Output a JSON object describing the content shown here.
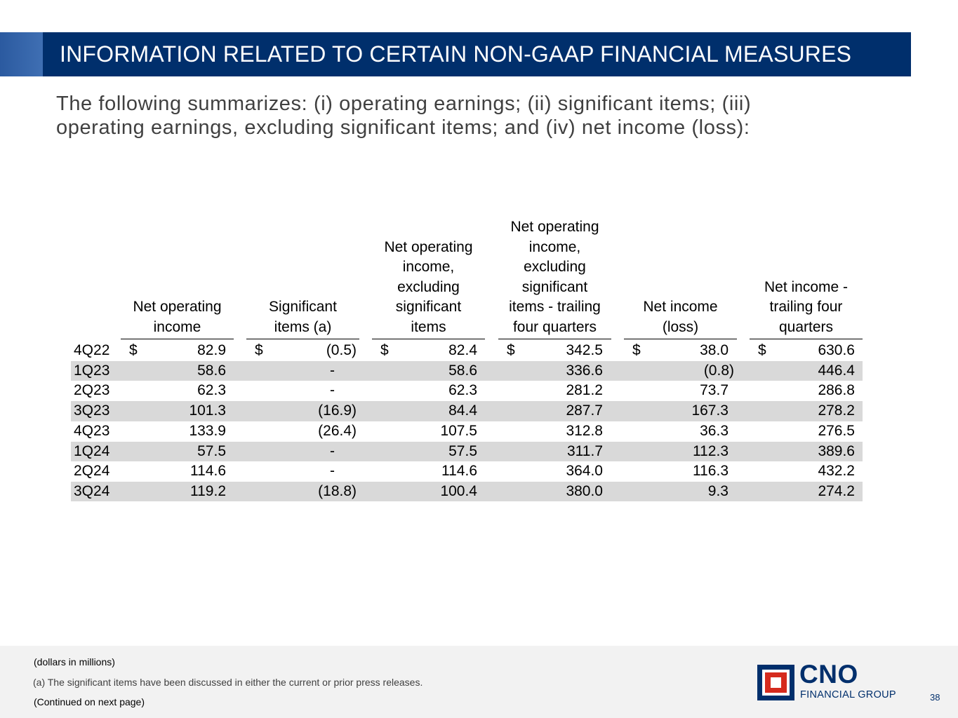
{
  "header": {
    "title": "INFORMATION RELATED TO CERTAIN NON-GAAP FINANCIAL MEASURES"
  },
  "intro": "The following summarizes: (i) operating earnings; (ii) significant items; (iii) operating earnings, excluding significant items; and (iv) net income (loss):",
  "table": {
    "columns": [
      [
        "Net operating",
        "income"
      ],
      [
        "Significant",
        "items (a)"
      ],
      [
        "Net operating",
        "income,",
        "excluding",
        "significant",
        "items"
      ],
      [
        "Net operating",
        "income,",
        "excluding",
        "significant",
        "items - trailing",
        "four quarters"
      ],
      [
        "Net income",
        "(loss)"
      ],
      [
        "Net income -",
        "trailing four",
        "quarters"
      ]
    ],
    "currency_symbol": "$",
    "rows": [
      {
        "period": "4Q22",
        "values": [
          "82.9",
          "(0.5)",
          "82.4",
          "342.5",
          "38.0",
          "630.6"
        ]
      },
      {
        "period": "1Q23",
        "values": [
          "58.6",
          "-",
          "58.6",
          "336.6",
          "(0.8)",
          "446.4"
        ]
      },
      {
        "period": "2Q23",
        "values": [
          "62.3",
          "-",
          "62.3",
          "281.2",
          "73.7",
          "286.8"
        ]
      },
      {
        "period": "3Q23",
        "values": [
          "101.3",
          "(16.9)",
          "84.4",
          "287.7",
          "167.3",
          "278.2"
        ]
      },
      {
        "period": "4Q23",
        "values": [
          "133.9",
          "(26.4)",
          "107.5",
          "312.8",
          "36.3",
          "276.5"
        ]
      },
      {
        "period": "1Q24",
        "values": [
          "57.5",
          "-",
          "57.5",
          "311.7",
          "112.3",
          "389.6"
        ]
      },
      {
        "period": "2Q24",
        "values": [
          "114.6",
          "-",
          "114.6",
          "364.0",
          "116.3",
          "432.2"
        ]
      },
      {
        "period": "3Q24",
        "values": [
          "119.2",
          "(18.8)",
          "100.4",
          "380.0",
          "9.3",
          "274.2"
        ]
      }
    ]
  },
  "footer": {
    "unit_note": "(dollars in millions)",
    "footnote": "(a) The significant items have been discussed in either the current or prior press releases.",
    "continued": "(Continued on next page)",
    "page_number": "38"
  },
  "logo": {
    "name": "CNO",
    "tagline": "FINANCIAL GROUP"
  },
  "colors": {
    "brand_navy": "#002f6c",
    "accent_blue": "#3f6fb3",
    "logo_red": "#d52b1e",
    "row_shade": "#d9d9d9",
    "footer_bg": "#f2f2f2"
  }
}
